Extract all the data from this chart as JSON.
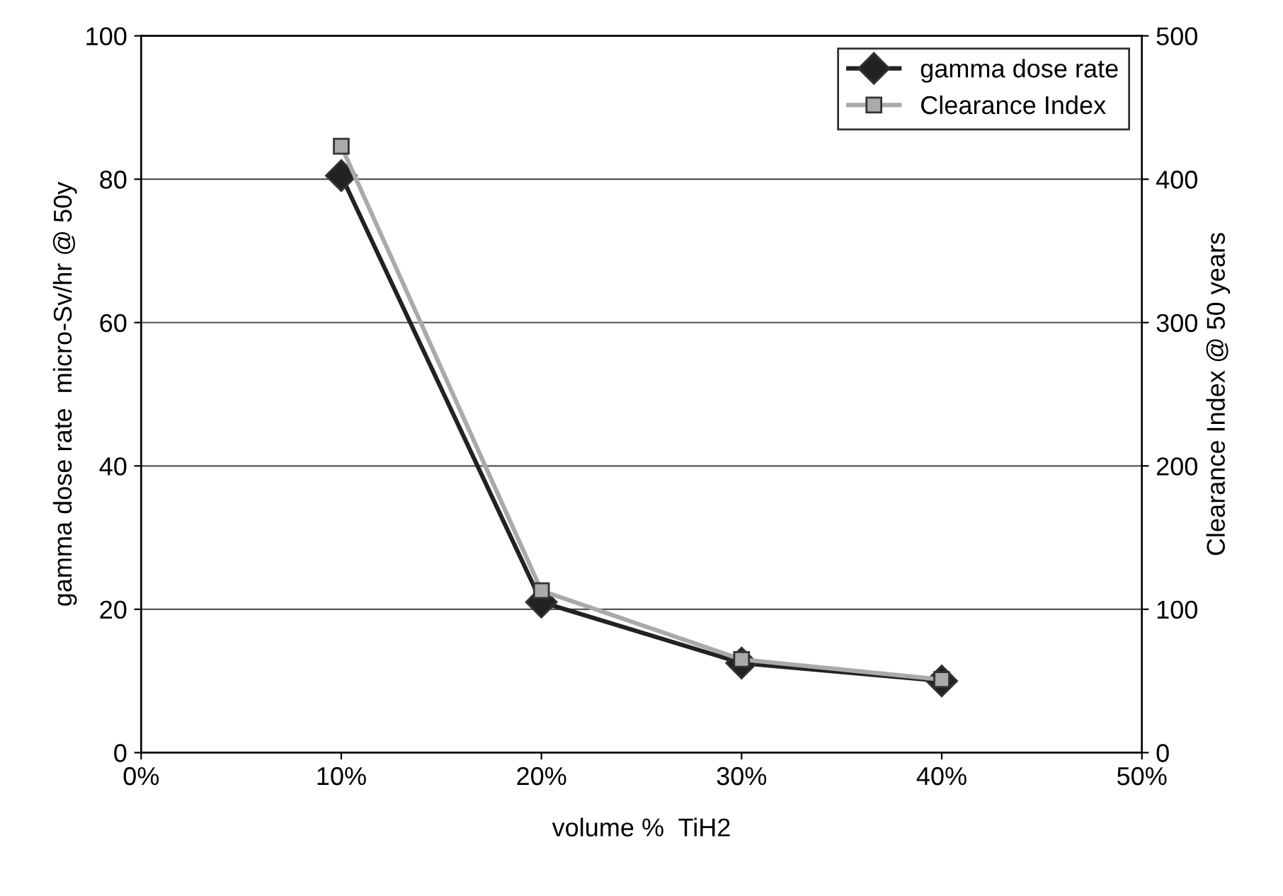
{
  "chart_data": {
    "type": "line",
    "xlabel": "volume %  TiH2",
    "ylabel": "gamma dose rate  micro-Sv/hr @ 50y",
    "y2label": "Clearance Index @ 50 years",
    "x": [
      10,
      20,
      30,
      40
    ],
    "series": [
      {
        "name": "gamma dose rate",
        "color": "#222222",
        "values": [
          80.5,
          21,
          12.5,
          10
        ],
        "marker": "diamond"
      },
      {
        "name": "Clearance Index",
        "color": "#aaaaaa",
        "values": [
          423,
          113,
          65,
          51
        ],
        "marker": "square",
        "axis": "y2"
      }
    ],
    "xlim": [
      0,
      50
    ],
    "xticks": [
      {
        "value": 0,
        "label": "0%"
      },
      {
        "value": 10,
        "label": "10%"
      },
      {
        "value": 20,
        "label": "20%"
      },
      {
        "value": 30,
        "label": "30%"
      },
      {
        "value": 40,
        "label": "40%"
      },
      {
        "value": 50,
        "label": "50%"
      }
    ],
    "ylim": [
      0,
      100
    ],
    "yticks": [
      0,
      20,
      40,
      60,
      80,
      100
    ],
    "y2lim": [
      0,
      500
    ],
    "y2ticks": [
      0,
      100,
      200,
      300,
      400,
      500
    ],
    "grid": "y",
    "legend": "top right",
    "line_style": "solid"
  }
}
